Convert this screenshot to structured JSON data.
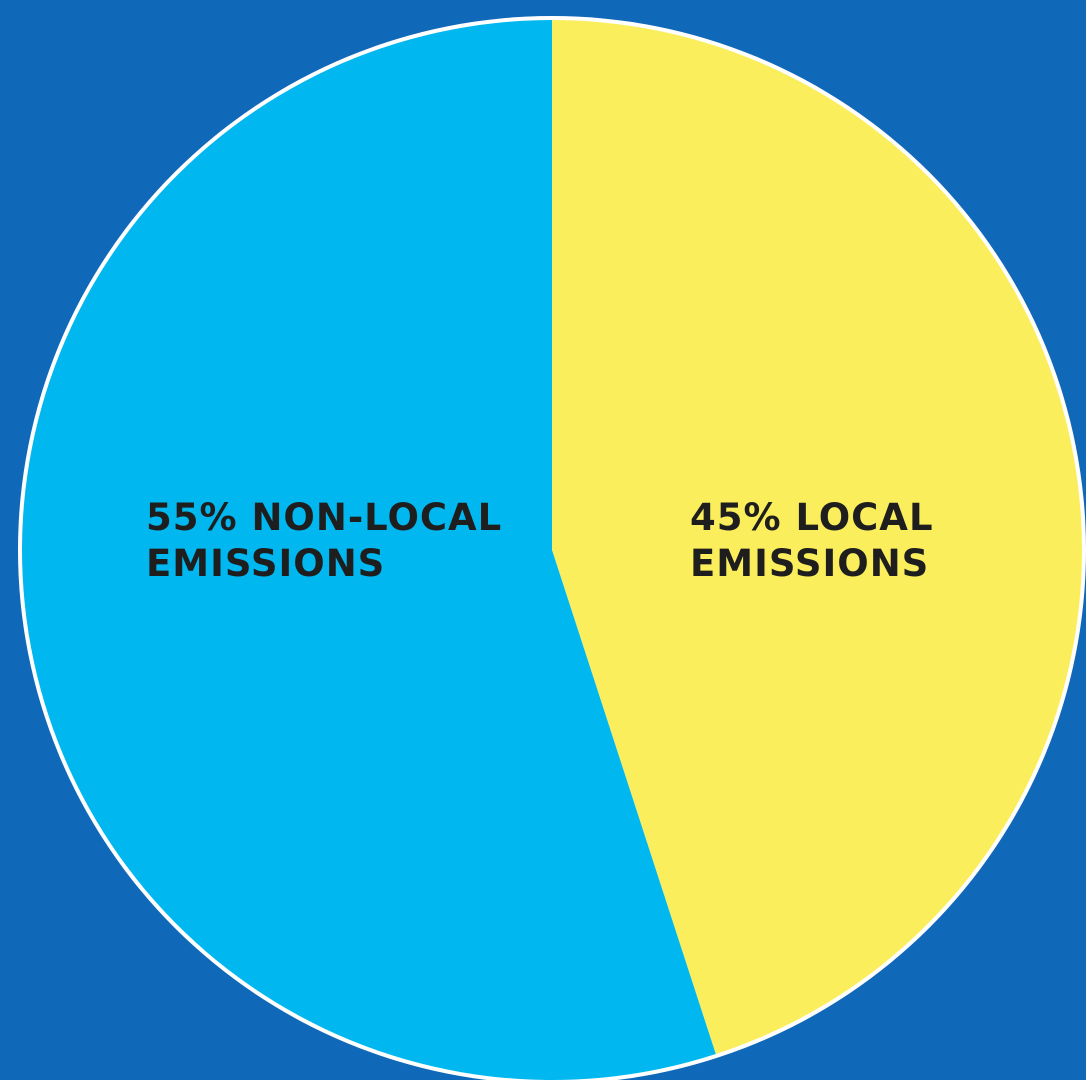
{
  "colors": {
    "background": "#1068b8",
    "outline": "#ffffff",
    "label_text": "#1e1e1e"
  },
  "chart_data": {
    "type": "pie",
    "start_angle_deg": 0,
    "direction": "clockwise",
    "slices": [
      {
        "value": 45,
        "color": "#fbee5c",
        "label_lines": [
          "45% LOCAL",
          "EMISSIONS"
        ]
      },
      {
        "value": 55,
        "color": "#00b8ef",
        "label_lines": [
          "55% NON-LOCAL",
          "EMISSIONS"
        ]
      }
    ]
  }
}
